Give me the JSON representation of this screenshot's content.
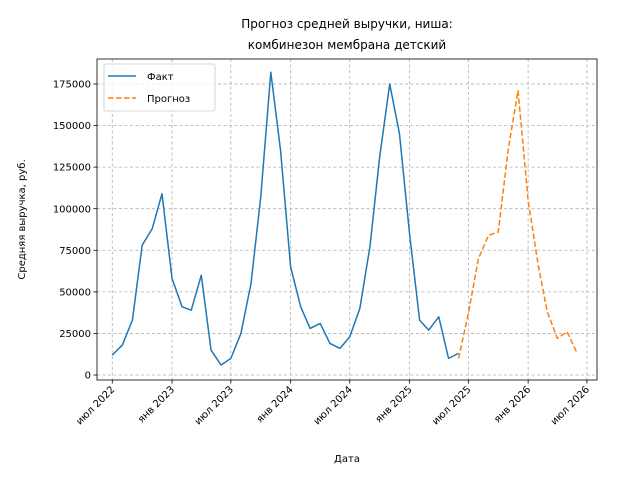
{
  "chart_data": {
    "type": "line",
    "title": [
      "Прогноз средней выручки, ниша:",
      "комбинезон мембрана детский"
    ],
    "xlabel": "Дата",
    "ylabel": "Средняя выручка, руб.",
    "xlim": [
      "2022-05-15",
      "2026-08-01"
    ],
    "ylim": [
      -3000,
      190000
    ],
    "x_ticks": [
      {
        "date": "2022-07-01",
        "label": "июл 2022"
      },
      {
        "date": "2023-01-01",
        "label": "янв 2023"
      },
      {
        "date": "2023-07-01",
        "label": "июл 2023"
      },
      {
        "date": "2024-01-01",
        "label": "янв 2024"
      },
      {
        "date": "2024-07-01",
        "label": "июл 2024"
      },
      {
        "date": "2025-01-01",
        "label": "янв 2025"
      },
      {
        "date": "2025-07-01",
        "label": "июл 2025"
      },
      {
        "date": "2026-01-01",
        "label": "янв 2026"
      },
      {
        "date": "2026-07-01",
        "label": "июл 2026"
      }
    ],
    "y_ticks": [
      0,
      25000,
      50000,
      75000,
      100000,
      125000,
      150000,
      175000
    ],
    "grid": true,
    "legend_position": "top-left",
    "series": [
      {
        "name": "Факт",
        "color": "#1f77b4",
        "dash": "solid",
        "x": [
          "2022-07-01",
          "2022-08-01",
          "2022-09-01",
          "2022-10-01",
          "2022-11-01",
          "2022-12-01",
          "2023-01-01",
          "2023-02-01",
          "2023-03-01",
          "2023-04-01",
          "2023-05-01",
          "2023-06-01",
          "2023-07-01",
          "2023-08-01",
          "2023-09-01",
          "2023-10-01",
          "2023-11-01",
          "2023-12-01",
          "2024-01-01",
          "2024-02-01",
          "2024-03-01",
          "2024-04-01",
          "2024-05-01",
          "2024-06-01",
          "2024-07-01",
          "2024-08-01",
          "2024-09-01",
          "2024-10-01",
          "2024-11-01",
          "2024-12-01",
          "2025-01-01",
          "2025-02-01",
          "2025-03-01",
          "2025-04-01",
          "2025-05-01",
          "2025-06-01"
        ],
        "values": [
          12000,
          18000,
          33000,
          78000,
          88000,
          109000,
          58000,
          41000,
          39000,
          60000,
          15000,
          6000,
          10000,
          25000,
          55000,
          107000,
          182000,
          135000,
          65000,
          41000,
          28000,
          31000,
          19000,
          16000,
          23000,
          40000,
          77000,
          131000,
          175000,
          145000,
          85000,
          33000,
          27000,
          35000,
          10000,
          13000
        ]
      },
      {
        "name": "Прогноз",
        "color": "#ff7f0e",
        "dash": "dashed",
        "x": [
          "2025-06-01",
          "2025-07-01",
          "2025-08-01",
          "2025-09-01",
          "2025-10-01",
          "2025-11-01",
          "2025-12-01",
          "2026-01-01",
          "2026-02-01",
          "2026-03-01",
          "2026-04-01",
          "2026-05-01",
          "2026-06-01"
        ],
        "values": [
          10000,
          37000,
          70000,
          84000,
          86000,
          136000,
          171000,
          105000,
          66000,
          38000,
          22000,
          26000,
          13000
        ]
      }
    ]
  }
}
